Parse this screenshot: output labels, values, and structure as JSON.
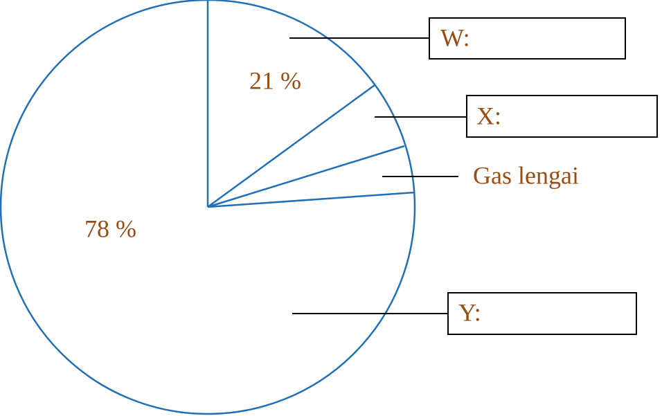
{
  "slices": [
    {
      "label": "21 %"
    },
    {
      "label": "78 %"
    }
  ],
  "callouts": [
    {
      "label": "W:"
    },
    {
      "label": "X:"
    },
    {
      "label": "Gas lengai"
    },
    {
      "label": "Y:"
    }
  ]
}
